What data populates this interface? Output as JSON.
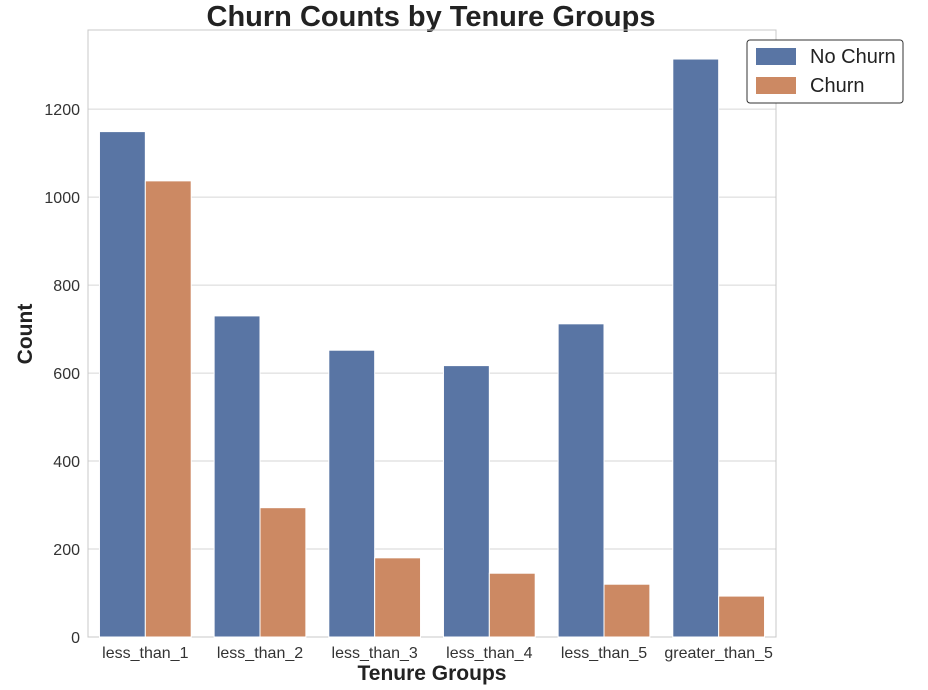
{
  "chart_data": {
    "type": "bar",
    "title": "Churn Counts by Tenure Groups",
    "xlabel": "Tenure Groups",
    "ylabel": "Count",
    "categories": [
      "less_than_1",
      "less_than_2",
      "less_than_3",
      "less_than_4",
      "less_than_5",
      "greater_than_5"
    ],
    "series": [
      {
        "name": "No Churn",
        "color": "#5975a4",
        "values": [
          1149,
          730,
          652,
          617,
          712,
          1314
        ]
      },
      {
        "name": "Churn",
        "color": "#cc8963",
        "values": [
          1037,
          294,
          180,
          145,
          120,
          93
        ]
      }
    ],
    "ylim": [
      0,
      1380
    ],
    "yticks": [
      0,
      200,
      400,
      600,
      800,
      1000,
      1200
    ],
    "grid": true,
    "legend_position": "top-right"
  }
}
